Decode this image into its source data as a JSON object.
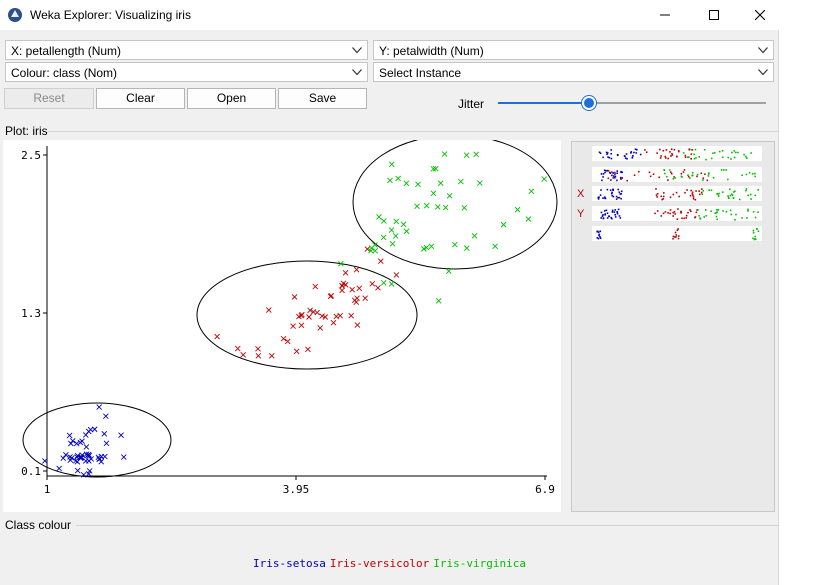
{
  "window": {
    "title": "Weka Explorer: Visualizing iris",
    "controls": [
      "minimize-icon",
      "maximize-icon",
      "close-icon"
    ]
  },
  "selectors": {
    "x_axis": "X: petallength (Num)",
    "y_axis": "Y: petalwidth (Num)",
    "colour": "Colour: class (Nom)",
    "instance": "Select Instance"
  },
  "buttons": {
    "reset": "Reset",
    "clear": "Clear",
    "open": "Open",
    "save": "Save"
  },
  "jitter": {
    "label": "Jitter",
    "value": 0.34
  },
  "plot": {
    "label": "Plot: iris"
  },
  "class_colour": {
    "label": "Class colour",
    "classes": [
      {
        "name": "Iris-setosa",
        "color": "#0000c0"
      },
      {
        "name": "Iris-versicolor",
        "color": "#c00000"
      },
      {
        "name": "Iris-virginica",
        "color": "#00c000"
      }
    ]
  },
  "chart_data": {
    "type": "scatter",
    "marker": "x",
    "xlabel": "",
    "ylabel": "",
    "xlim": [
      1,
      6.9
    ],
    "ylim": [
      0.1,
      2.5
    ],
    "x_ticks": [
      "1",
      "3.95",
      "6.9"
    ],
    "y_ticks": [
      "2.5",
      "1.3",
      "0.1"
    ],
    "grid": false,
    "series": [
      {
        "name": "Iris-setosa",
        "color": "#0000c0",
        "points": [
          [
            1.4,
            0.2
          ],
          [
            1.4,
            0.2
          ],
          [
            1.3,
            0.2
          ],
          [
            1.5,
            0.2
          ],
          [
            1.4,
            0.2
          ],
          [
            1.7,
            0.4
          ],
          [
            1.4,
            0.3
          ],
          [
            1.5,
            0.2
          ],
          [
            1.4,
            0.2
          ],
          [
            1.5,
            0.1
          ],
          [
            1.5,
            0.2
          ],
          [
            1.6,
            0.2
          ],
          [
            1.4,
            0.1
          ],
          [
            1.1,
            0.1
          ],
          [
            1.2,
            0.2
          ],
          [
            1.5,
            0.4
          ],
          [
            1.3,
            0.4
          ],
          [
            1.4,
            0.3
          ],
          [
            1.7,
            0.3
          ],
          [
            1.5,
            0.3
          ],
          [
            1.7,
            0.2
          ],
          [
            1.5,
            0.4
          ],
          [
            1.0,
            0.2
          ],
          [
            1.7,
            0.5
          ],
          [
            1.9,
            0.2
          ],
          [
            1.6,
            0.2
          ],
          [
            1.6,
            0.4
          ],
          [
            1.5,
            0.2
          ],
          [
            1.4,
            0.2
          ],
          [
            1.6,
            0.2
          ],
          [
            1.6,
            0.2
          ],
          [
            1.5,
            0.4
          ],
          [
            1.5,
            0.1
          ],
          [
            1.4,
            0.2
          ],
          [
            1.5,
            0.2
          ],
          [
            1.2,
            0.2
          ],
          [
            1.3,
            0.2
          ],
          [
            1.4,
            0.1
          ],
          [
            1.3,
            0.2
          ],
          [
            1.5,
            0.2
          ],
          [
            1.3,
            0.3
          ],
          [
            1.3,
            0.3
          ],
          [
            1.3,
            0.2
          ],
          [
            1.6,
            0.6
          ],
          [
            1.9,
            0.4
          ],
          [
            1.4,
            0.3
          ],
          [
            1.6,
            0.2
          ],
          [
            1.4,
            0.2
          ],
          [
            1.5,
            0.2
          ],
          [
            1.4,
            0.2
          ]
        ]
      },
      {
        "name": "Iris-versicolor",
        "color": "#c00000",
        "points": [
          [
            4.7,
            1.4
          ],
          [
            4.5,
            1.5
          ],
          [
            4.9,
            1.5
          ],
          [
            4.0,
            1.3
          ],
          [
            4.6,
            1.5
          ],
          [
            4.5,
            1.3
          ],
          [
            4.7,
            1.6
          ],
          [
            3.3,
            1.0
          ],
          [
            4.6,
            1.3
          ],
          [
            3.9,
            1.4
          ],
          [
            3.5,
            1.0
          ],
          [
            4.2,
            1.5
          ],
          [
            4.0,
            1.0
          ],
          [
            4.7,
            1.4
          ],
          [
            3.6,
            1.3
          ],
          [
            4.4,
            1.4
          ],
          [
            4.5,
            1.5
          ],
          [
            4.1,
            1.0
          ],
          [
            4.5,
            1.5
          ],
          [
            3.9,
            1.1
          ],
          [
            4.8,
            1.8
          ],
          [
            4.0,
            1.3
          ],
          [
            4.9,
            1.5
          ],
          [
            4.7,
            1.2
          ],
          [
            4.3,
            1.3
          ],
          [
            4.4,
            1.4
          ],
          [
            4.8,
            1.4
          ],
          [
            5.0,
            1.7
          ],
          [
            4.5,
            1.5
          ],
          [
            3.5,
            1.0
          ],
          [
            3.8,
            1.1
          ],
          [
            3.7,
            1.0
          ],
          [
            3.9,
            1.2
          ],
          [
            5.1,
            1.6
          ],
          [
            4.5,
            1.5
          ],
          [
            4.5,
            1.6
          ],
          [
            4.7,
            1.5
          ],
          [
            4.4,
            1.3
          ],
          [
            4.1,
            1.3
          ],
          [
            4.0,
            1.3
          ],
          [
            4.4,
            1.2
          ],
          [
            4.6,
            1.4
          ],
          [
            4.0,
            1.2
          ],
          [
            3.3,
            1.0
          ],
          [
            4.2,
            1.3
          ],
          [
            4.2,
            1.2
          ],
          [
            4.2,
            1.3
          ],
          [
            4.3,
            1.3
          ],
          [
            3.0,
            1.1
          ],
          [
            4.1,
            1.3
          ]
        ]
      },
      {
        "name": "Iris-virginica",
        "color": "#00c000",
        "points": [
          [
            6.0,
            2.5
          ],
          [
            5.1,
            1.9
          ],
          [
            5.9,
            2.1
          ],
          [
            5.6,
            1.8
          ],
          [
            5.8,
            2.2
          ],
          [
            6.6,
            2.1
          ],
          [
            4.5,
            1.7
          ],
          [
            6.3,
            1.8
          ],
          [
            5.8,
            1.8
          ],
          [
            6.1,
            2.5
          ],
          [
            5.1,
            2.0
          ],
          [
            5.3,
            1.9
          ],
          [
            5.5,
            2.1
          ],
          [
            5.0,
            2.0
          ],
          [
            5.1,
            2.4
          ],
          [
            5.3,
            2.3
          ],
          [
            5.5,
            1.8
          ],
          [
            6.7,
            2.2
          ],
          [
            6.9,
            2.3
          ],
          [
            5.0,
            1.5
          ],
          [
            5.7,
            2.3
          ],
          [
            4.9,
            2.0
          ],
          [
            6.7,
            2.0
          ],
          [
            4.9,
            1.8
          ],
          [
            5.7,
            2.1
          ],
          [
            6.0,
            1.8
          ],
          [
            4.8,
            1.8
          ],
          [
            4.9,
            1.8
          ],
          [
            5.6,
            2.1
          ],
          [
            5.8,
            1.6
          ],
          [
            6.1,
            1.9
          ],
          [
            6.4,
            2.0
          ],
          [
            5.6,
            2.2
          ],
          [
            5.1,
            1.5
          ],
          [
            5.6,
            1.4
          ],
          [
            6.1,
            2.3
          ],
          [
            5.6,
            2.4
          ],
          [
            5.5,
            1.8
          ],
          [
            4.8,
            1.8
          ],
          [
            5.4,
            2.1
          ],
          [
            5.6,
            2.4
          ],
          [
            5.1,
            2.3
          ],
          [
            5.1,
            1.9
          ],
          [
            5.9,
            2.3
          ],
          [
            5.7,
            2.5
          ],
          [
            5.2,
            2.3
          ],
          [
            5.0,
            1.9
          ],
          [
            5.2,
            2.0
          ],
          [
            5.4,
            2.3
          ],
          [
            5.1,
            1.8
          ]
        ]
      }
    ]
  }
}
